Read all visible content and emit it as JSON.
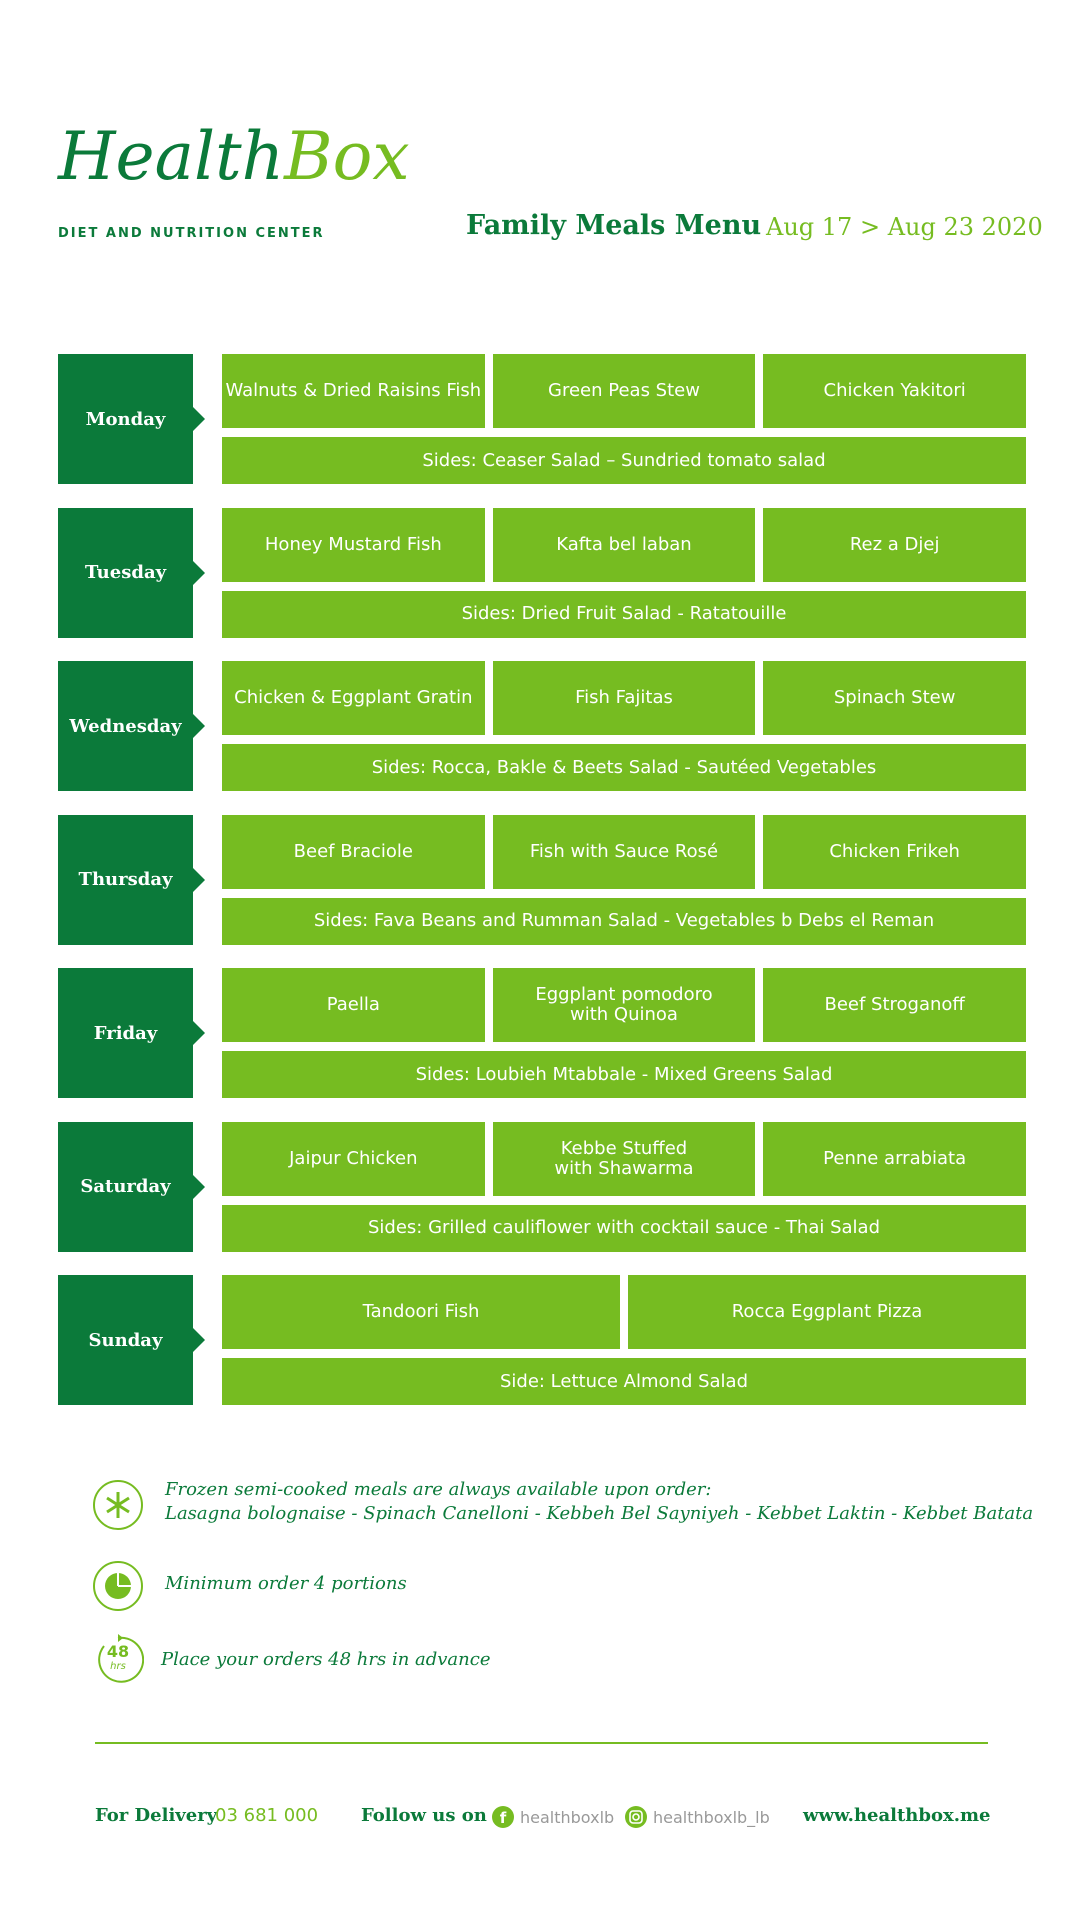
{
  "header": {
    "logo": {
      "brand": "Health",
      "brand_accent": "Box",
      "tagline": "DIET AND NUTRITION CENTER"
    },
    "title": "Family Meals Menu",
    "date_range": "Aug 17 > Aug 23 2020"
  },
  "days": [
    {
      "name": "Monday",
      "dishes": [
        "Walnuts & Dried Raisins Fish",
        "Green Peas Stew",
        "Chicken Yakitori"
      ],
      "sides": "Sides: Ceaser Salad – Sundried tomato salad"
    },
    {
      "name": "Tuesday",
      "dishes": [
        "Honey Mustard Fish",
        "Kafta bel laban",
        "Rez a Djej"
      ],
      "sides": "Sides: Dried Fruit Salad - Ratatouille"
    },
    {
      "name": "Wednesday",
      "dishes": [
        "Chicken & Eggplant Gratin",
        "Fish Fajitas",
        "Spinach Stew"
      ],
      "sides": "Sides:  Rocca, Bakle & Beets Salad - Sautéed Vegetables"
    },
    {
      "name": "Thursday",
      "dishes": [
        "Beef Braciole",
        "Fish with Sauce Rosé",
        "Chicken Frikeh"
      ],
      "sides": "Sides: Fava Beans and Rumman Salad - Vegetables b Debs el Reman"
    },
    {
      "name": "Friday",
      "dishes": [
        "Paella",
        "Eggplant pomodoro\nwith Quinoa",
        "Beef Stroganoff"
      ],
      "sides": "Sides: Loubieh Mtabbale - Mixed Greens Salad"
    },
    {
      "name": "Saturday",
      "dishes": [
        "Jaipur Chicken",
        "Kebbe Stuffed\nwith Shawarma",
        "Penne arrabiata"
      ],
      "sides": "Sides: Grilled cauliflower with cocktail sauce - Thai Salad"
    },
    {
      "name": "Sunday",
      "dishes": [
        "Tandoori Fish",
        "Rocca Eggplant Pizza"
      ],
      "sides": "Side: Lettuce Almond Salad"
    }
  ],
  "notes": [
    {
      "text": "Frozen semi-cooked meals are always available upon order:\nLasagna bolognaise - Spinach Canelloni - Kebbeh Bel Sayniyeh - Kebbet Laktin - Kebbet Batata"
    },
    {
      "text": "Minimum order 4 portions"
    },
    {
      "badge": "48",
      "badge_unit": "hrs",
      "text": "Place your orders 48 hrs in advance"
    }
  ],
  "footer": {
    "delivery_label": "For Delivery",
    "phone": "03 681 000",
    "follow_label": "Follow us on",
    "facebook": "healthboxlb",
    "instagram": "healthboxlb_lb",
    "website": "www.healthbox.me"
  }
}
